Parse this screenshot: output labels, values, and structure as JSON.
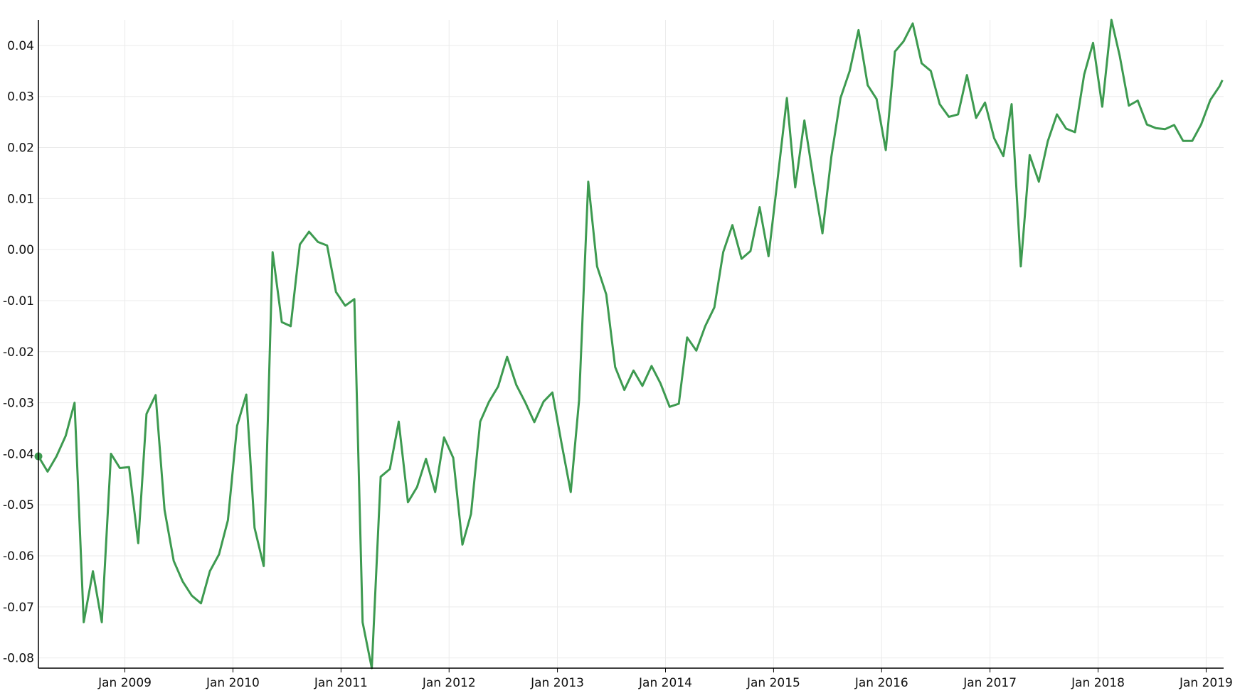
{
  "chart_data": {
    "type": "line",
    "title": "",
    "xlabel": "",
    "ylabel": "",
    "ylim": [
      -0.082,
      0.045
    ],
    "xlim": [
      "2008-03-15",
      "2019-03-01"
    ],
    "grid": true,
    "line_color": "#3d9a50",
    "marker_at_start": true,
    "y_ticks": [
      "0.04",
      "0.03",
      "0.02",
      "0.01",
      "0.00",
      "-0.01",
      "-0.02",
      "-0.03",
      "-0.04",
      "-0.05",
      "-0.06",
      "-0.07",
      "-0.08"
    ],
    "y_tick_values": [
      0.04,
      0.03,
      0.02,
      0.01,
      0.0,
      -0.01,
      -0.02,
      -0.03,
      -0.04,
      -0.05,
      -0.06,
      -0.07,
      -0.08
    ],
    "x_ticks": [
      "Jan 2009",
      "Jan 2010",
      "Jan 2011",
      "Jan 2012",
      "Jan 2013",
      "Jan 2014",
      "Jan 2015",
      "Jan 2016",
      "Jan 2017",
      "Jan 2018",
      "Jan 2019"
    ],
    "x_tick_dates": [
      "2009-01-01",
      "2010-01-01",
      "2011-01-01",
      "2012-01-01",
      "2013-01-01",
      "2014-01-01",
      "2015-01-01",
      "2016-01-01",
      "2017-01-01",
      "2018-01-01",
      "2019-01-01"
    ],
    "series": [
      {
        "x": [
          "2008-03-15",
          "2008-04-15",
          "2008-05-15",
          "2008-06-15",
          "2008-07-15",
          "2008-08-15",
          "2008-09-15",
          "2008-10-15",
          "2008-11-15",
          "2008-12-15",
          "2009-01-15",
          "2009-02-15",
          "2009-03-15",
          "2009-04-15",
          "2009-05-15",
          "2009-06-15",
          "2009-07-15",
          "2009-08-15",
          "2009-09-15",
          "2009-10-15",
          "2009-11-15",
          "2009-12-15",
          "2010-01-15",
          "2010-02-15",
          "2010-03-15",
          "2010-04-15",
          "2010-05-15",
          "2010-06-15",
          "2010-07-15",
          "2010-08-15",
          "2010-09-15",
          "2010-10-15",
          "2010-11-15",
          "2010-12-15",
          "2011-01-15",
          "2011-02-15",
          "2011-03-15",
          "2011-04-15",
          "2011-05-15",
          "2011-06-15",
          "2011-07-15",
          "2011-08-15",
          "2011-09-15",
          "2011-10-15",
          "2011-11-15",
          "2011-12-15",
          "2012-01-15",
          "2012-02-15",
          "2012-03-15",
          "2012-04-15",
          "2012-05-15",
          "2012-06-15",
          "2012-07-15",
          "2012-08-15",
          "2012-09-15",
          "2012-10-15",
          "2012-11-15",
          "2012-12-15",
          "2013-01-15",
          "2013-02-15",
          "2013-03-15",
          "2013-04-15",
          "2013-05-15",
          "2013-06-15",
          "2013-07-15",
          "2013-08-15",
          "2013-09-15",
          "2013-10-15",
          "2013-11-15",
          "2013-12-15",
          "2014-01-15",
          "2014-02-15",
          "2014-03-15",
          "2014-04-15",
          "2014-05-15",
          "2014-06-15",
          "2014-07-15",
          "2014-08-15",
          "2014-09-15",
          "2014-10-15",
          "2014-11-15",
          "2014-12-15",
          "2015-01-15",
          "2015-02-15",
          "2015-03-15",
          "2015-04-15",
          "2015-05-15",
          "2015-06-15",
          "2015-07-15",
          "2015-08-15",
          "2015-09-15",
          "2015-10-15",
          "2015-11-15",
          "2015-12-15",
          "2016-01-15",
          "2016-02-15",
          "2016-03-15",
          "2016-04-15",
          "2016-05-15",
          "2016-06-15",
          "2016-07-15",
          "2016-08-15",
          "2016-09-15",
          "2016-10-15",
          "2016-11-15",
          "2016-12-15",
          "2017-01-15",
          "2017-02-15",
          "2017-03-15",
          "2017-04-15",
          "2017-05-15",
          "2017-06-15",
          "2017-07-15",
          "2017-08-15",
          "2017-09-15",
          "2017-10-15",
          "2017-11-15",
          "2017-12-15",
          "2018-01-15",
          "2018-02-15",
          "2018-03-15",
          "2018-04-15",
          "2018-05-15",
          "2018-06-15",
          "2018-07-15",
          "2018-08-15",
          "2018-09-15",
          "2018-10-15",
          "2018-11-15",
          "2018-12-15",
          "2019-01-15",
          "2019-02-15",
          "2019-02-25"
        ],
        "values": [
          -0.0405,
          -0.0435,
          -0.0405,
          -0.0365,
          -0.03,
          -0.073,
          -0.063,
          -0.073,
          -0.04,
          -0.0428,
          -0.0426,
          -0.0575,
          -0.0322,
          -0.0285,
          -0.051,
          -0.061,
          -0.065,
          -0.0678,
          -0.0693,
          -0.063,
          -0.0597,
          -0.053,
          -0.0345,
          -0.0284,
          -0.0545,
          -0.062,
          -0.0005,
          -0.0142,
          -0.015,
          0.001,
          0.0035,
          0.0015,
          0.0008,
          -0.0083,
          -0.011,
          -0.0097,
          -0.073,
          -0.082,
          -0.0445,
          -0.043,
          -0.0337,
          -0.0495,
          -0.0465,
          -0.041,
          -0.0475,
          -0.0368,
          -0.0408,
          -0.0578,
          -0.0518,
          -0.0337,
          -0.0298,
          -0.0268,
          -0.021,
          -0.0265,
          -0.03,
          -0.0338,
          -0.0298,
          -0.028,
          -0.038,
          -0.0475,
          -0.0295,
          0.0133,
          -0.0033,
          -0.0088,
          -0.023,
          -0.0275,
          -0.0237,
          -0.0267,
          -0.0228,
          -0.0262,
          -0.0308,
          -0.0302,
          -0.0172,
          -0.0198,
          -0.015,
          -0.0113,
          -0.0005,
          0.0048,
          -0.0018,
          -0.0003,
          0.0083,
          -0.0013,
          0.014,
          0.0297,
          0.0122,
          0.0253,
          0.014,
          0.0032,
          0.0182,
          0.0297,
          0.035,
          0.043,
          0.0322,
          0.0295,
          0.0195,
          0.0388,
          0.0408,
          0.0443,
          0.0365,
          0.035,
          0.0285,
          0.026,
          0.0265,
          0.0342,
          0.0258,
          0.0288,
          0.0218,
          0.0183,
          0.0285,
          -0.0033,
          0.0185,
          0.0133,
          0.0212,
          0.0265,
          0.0237,
          0.023,
          0.0343,
          0.0405,
          0.028,
          0.045,
          0.038,
          0.0282,
          0.0292,
          0.0245,
          0.0238,
          0.0236,
          0.0244,
          0.0213,
          0.0213,
          0.0245,
          0.0293,
          0.032,
          0.0332
        ]
      }
    ]
  }
}
